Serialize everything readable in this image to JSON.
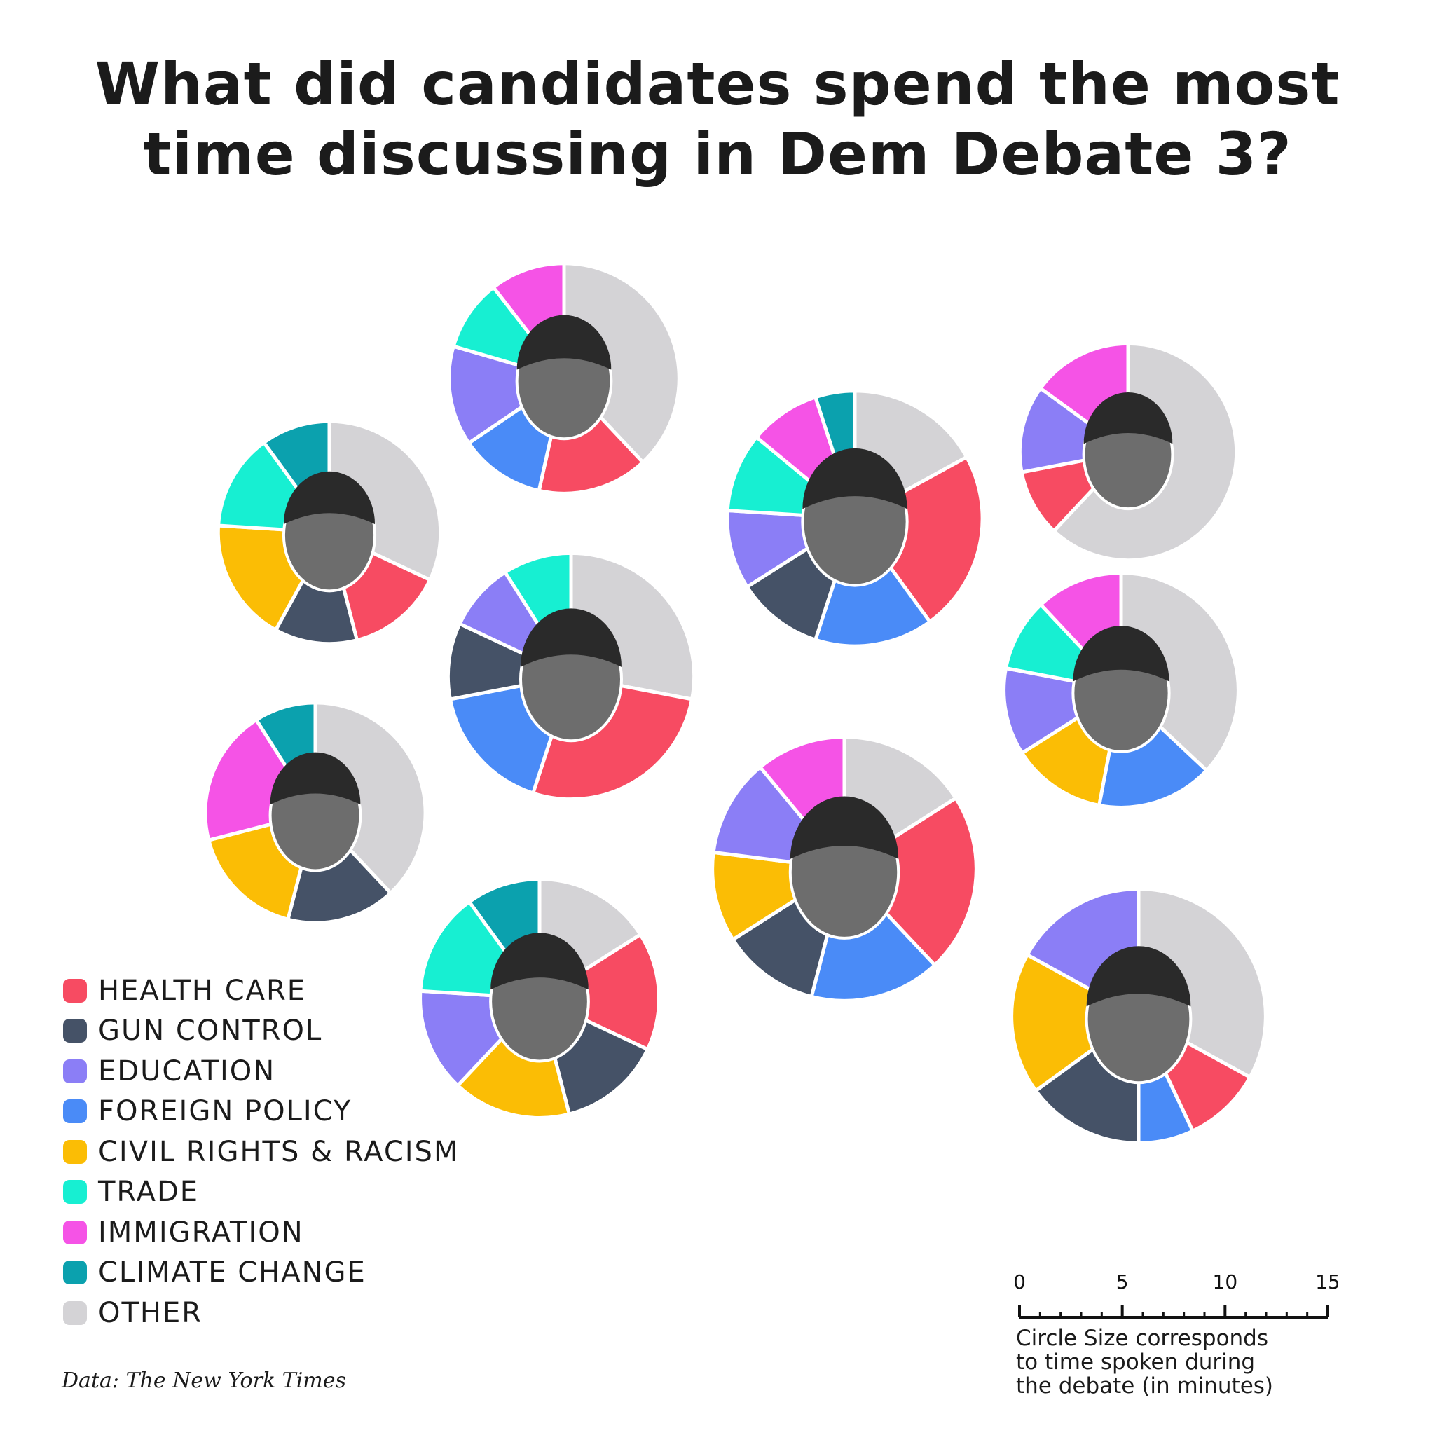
{
  "title": {
    "line1": "What did candidates spend the most",
    "line2": "time discussing in Dem Debate 3?"
  },
  "legend": [
    {
      "label": "HEALTH CARE",
      "color": "#f74b62"
    },
    {
      "label": "GUN CONTROL",
      "color": "#455267"
    },
    {
      "label": "EDUCATION",
      "color": "#8b7ef6"
    },
    {
      "label": "FOREIGN POLICY",
      "color": "#4a8bf7"
    },
    {
      "label": "CIVIL RIGHTS & RACISM",
      "color": "#fbbd05"
    },
    {
      "label": "TRADE",
      "color": "#17efd2"
    },
    {
      "label": "IMMIGRATION",
      "color": "#f553e6"
    },
    {
      "label": "CLIMATE CHANGE",
      "color": "#0ba1ae"
    },
    {
      "label": "OTHER",
      "color": "#d4d3d6"
    }
  ],
  "source": "Data: The New York Times",
  "scale": {
    "ticks": [
      "0",
      "5",
      "10",
      "15"
    ],
    "note_lines": [
      "Circle Size corresponds",
      "to time spoken during",
      "the debate (in minutes)"
    ]
  },
  "chart_data": {
    "type": "pie",
    "title": "What did candidates spend the most time discussing in Dem Debate 3?",
    "size_variable": "time spoken during the debate (in minutes)",
    "size_scale": [
      0,
      15
    ],
    "categories": [
      "HEALTH CARE",
      "GUN CONTROL",
      "EDUCATION",
      "FOREIGN POLICY",
      "CIVIL RIGHTS & RACISM",
      "TRADE",
      "IMMIGRATION",
      "CLIMATE CHANGE",
      "OTHER"
    ],
    "candidates": [
      {
        "id": "castro",
        "total": 10.5,
        "slices": [
          {
            "topic": "OTHER",
            "value": 0.38
          },
          {
            "topic": "HEALTH CARE",
            "value": 0.155
          },
          {
            "topic": "FOREIGN POLICY",
            "value": 0.12
          },
          {
            "topic": "EDUCATION",
            "value": 0.14
          },
          {
            "topic": "TRADE",
            "value": 0.1
          },
          {
            "topic": "IMMIGRATION",
            "value": 0.105
          }
        ]
      },
      {
        "id": "klobuchar",
        "total": 9.8,
        "slices": [
          {
            "topic": "OTHER",
            "value": 0.32
          },
          {
            "topic": "HEALTH CARE",
            "value": 0.14
          },
          {
            "topic": "GUN CONTROL",
            "value": 0.12
          },
          {
            "topic": "CIVIL RIGHTS & RACISM",
            "value": 0.18
          },
          {
            "topic": "TRADE",
            "value": 0.14
          },
          {
            "topic": "CLIMATE CHANGE",
            "value": 0.1
          }
        ]
      },
      {
        "id": "warren",
        "total": 12.9,
        "slices": [
          {
            "topic": "OTHER",
            "value": 0.17
          },
          {
            "topic": "HEALTH CARE",
            "value": 0.23
          },
          {
            "topic": "FOREIGN POLICY",
            "value": 0.15
          },
          {
            "topic": "GUN CONTROL",
            "value": 0.11
          },
          {
            "topic": "EDUCATION",
            "value": 0.1
          },
          {
            "topic": "TRADE",
            "value": 0.1
          },
          {
            "topic": "IMMIGRATION",
            "value": 0.09
          },
          {
            "topic": "CLIMATE CHANGE",
            "value": 0.05
          }
        ]
      },
      {
        "id": "yang",
        "total": 9.3,
        "slices": [
          {
            "topic": "OTHER",
            "value": 0.62
          },
          {
            "topic": "HEALTH CARE",
            "value": 0.1
          },
          {
            "topic": "EDUCATION",
            "value": 0.13
          },
          {
            "topic": "IMMIGRATION",
            "value": 0.15
          }
        ]
      },
      {
        "id": "sanders",
        "total": 12.0,
        "slices": [
          {
            "topic": "OTHER",
            "value": 0.28
          },
          {
            "topic": "HEALTH CARE",
            "value": 0.27
          },
          {
            "topic": "FOREIGN POLICY",
            "value": 0.17
          },
          {
            "topic": "GUN CONTROL",
            "value": 0.1
          },
          {
            "topic": "EDUCATION",
            "value": 0.09
          },
          {
            "topic": "TRADE",
            "value": 0.09
          }
        ]
      },
      {
        "id": "buttigieg",
        "total": 10.9,
        "slices": [
          {
            "topic": "OTHER",
            "value": 0.37
          },
          {
            "topic": "FOREIGN POLICY",
            "value": 0.16
          },
          {
            "topic": "CIVIL RIGHTS & RACISM",
            "value": 0.13
          },
          {
            "topic": "EDUCATION",
            "value": 0.12
          },
          {
            "topic": "TRADE",
            "value": 0.1
          },
          {
            "topic": "IMMIGRATION",
            "value": 0.12
          }
        ]
      },
      {
        "id": "orourke",
        "total": 9.6,
        "slices": [
          {
            "topic": "OTHER",
            "value": 0.38
          },
          {
            "topic": "GUN CONTROL",
            "value": 0.16
          },
          {
            "topic": "CIVIL RIGHTS & RACISM",
            "value": 0.17
          },
          {
            "topic": "IMMIGRATION",
            "value": 0.2
          },
          {
            "topic": "CLIMATE CHANGE",
            "value": 0.09
          }
        ]
      },
      {
        "id": "biden",
        "total": 13.8,
        "slices": [
          {
            "topic": "OTHER",
            "value": 0.16
          },
          {
            "topic": "HEALTH CARE",
            "value": 0.22
          },
          {
            "topic": "FOREIGN POLICY",
            "value": 0.16
          },
          {
            "topic": "GUN CONTROL",
            "value": 0.12
          },
          {
            "topic": "CIVIL RIGHTS & RACISM",
            "value": 0.11
          },
          {
            "topic": "EDUCATION",
            "value": 0.12
          },
          {
            "topic": "IMMIGRATION",
            "value": 0.11
          }
        ]
      },
      {
        "id": "harris",
        "total": 11.3,
        "slices": [
          {
            "topic": "OTHER",
            "value": 0.16
          },
          {
            "topic": "HEALTH CARE",
            "value": 0.16
          },
          {
            "topic": "GUN CONTROL",
            "value": 0.14
          },
          {
            "topic": "CIVIL RIGHTS & RACISM",
            "value": 0.16
          },
          {
            "topic": "EDUCATION",
            "value": 0.14
          },
          {
            "topic": "TRADE",
            "value": 0.14
          },
          {
            "topic": "CLIMATE CHANGE",
            "value": 0.1
          }
        ]
      },
      {
        "id": "booker",
        "total": 12.8,
        "slices": [
          {
            "topic": "OTHER",
            "value": 0.33
          },
          {
            "topic": "HEALTH CARE",
            "value": 0.1
          },
          {
            "topic": "FOREIGN POLICY",
            "value": 0.07
          },
          {
            "topic": "GUN CONTROL",
            "value": 0.15
          },
          {
            "topic": "CIVIL RIGHTS & RACISM",
            "value": 0.18
          },
          {
            "topic": "EDUCATION",
            "value": 0.17
          }
        ]
      }
    ]
  }
}
